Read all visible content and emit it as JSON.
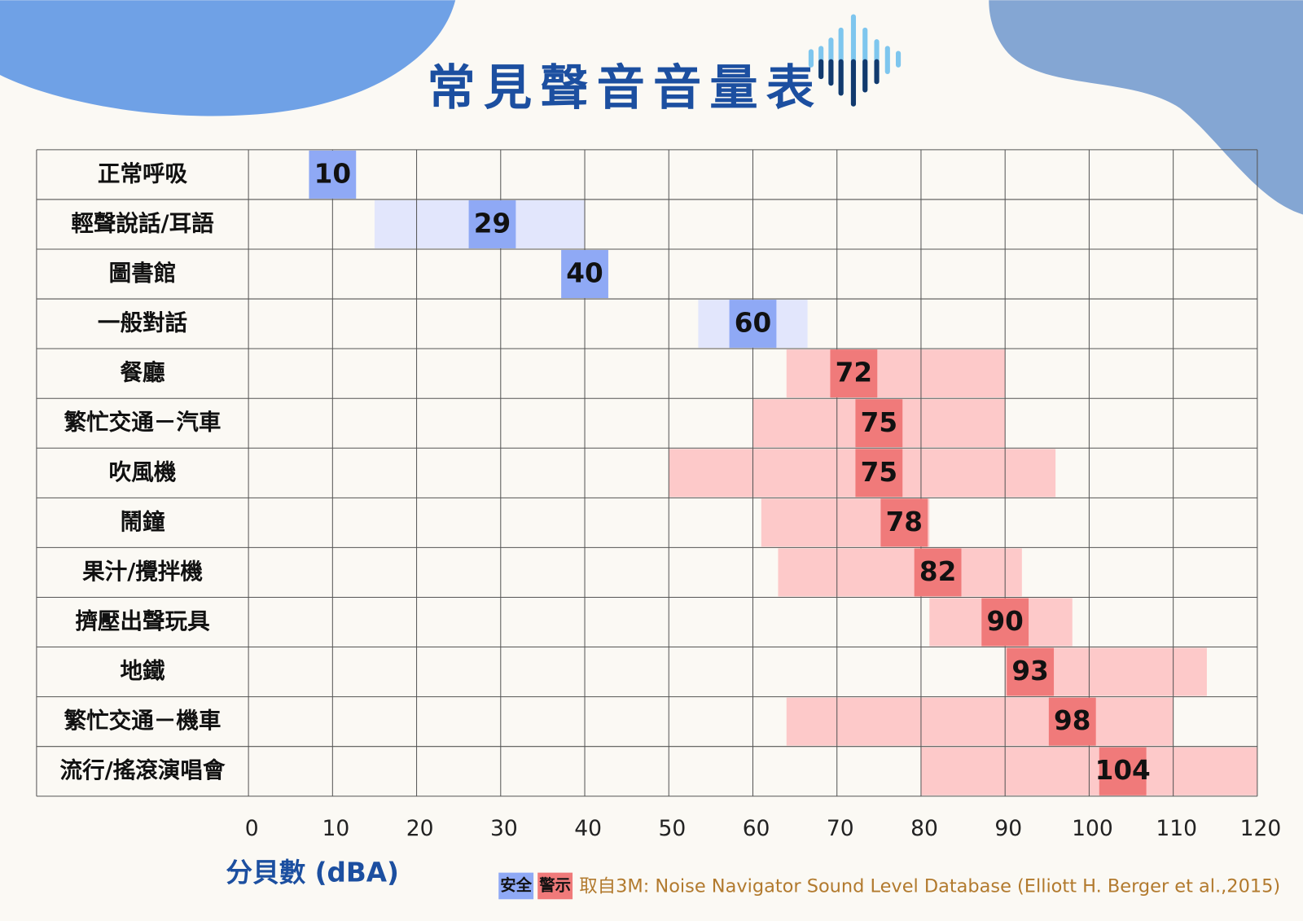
{
  "chart_data": {
    "type": "range-bar",
    "title": "常見聲音音量表",
    "x_label": "分貝數 (dBA)",
    "source": "取自3M: Noise Navigator Sound Level Database (Elliott H. Berger et al.,2015)",
    "categories": [
      "正常呼吸",
      "輕聲說話/耳語",
      "圖書館",
      "一般對話",
      "餐廳",
      "繁忙交通－汽車",
      "吹風機",
      "鬧鐘",
      "果汁/攪拌機",
      "擠壓出聲玩具",
      "地鐵",
      "繁忙交通－機車",
      "流行/搖滾演唱會"
    ],
    "series": [
      {
        "name": "安全",
        "color": "#8fa9f5",
        "range_color": "#e2e6fc",
        "values": [
          10,
          29,
          40,
          60,
          null,
          null,
          null,
          null,
          null,
          null,
          null,
          null,
          null
        ],
        "range_low": [
          null,
          15,
          null,
          53.5,
          null,
          null,
          null,
          null,
          null,
          null,
          null,
          null,
          null
        ],
        "range_high": [
          null,
          40,
          null,
          66.5,
          null,
          null,
          null,
          null,
          null,
          null,
          null,
          null,
          null
        ]
      },
      {
        "name": "警示",
        "color": "#f07a7a",
        "range_color": "#fdc9c9",
        "values": [
          null,
          null,
          null,
          null,
          72,
          75,
          75,
          78,
          82,
          90,
          93,
          98,
          104
        ],
        "range_low": [
          null,
          null,
          null,
          null,
          64,
          60,
          50,
          61,
          63,
          81,
          90,
          64,
          80
        ],
        "range_high": [
          null,
          null,
          null,
          null,
          90,
          90,
          96,
          81,
          92,
          98,
          114,
          110,
          120
        ]
      }
    ],
    "xlim": [
      0,
      120
    ],
    "xticks": [
      0,
      10,
      20,
      30,
      40,
      50,
      60,
      70,
      80,
      90,
      100,
      110,
      120
    ],
    "grid": true
  }
}
